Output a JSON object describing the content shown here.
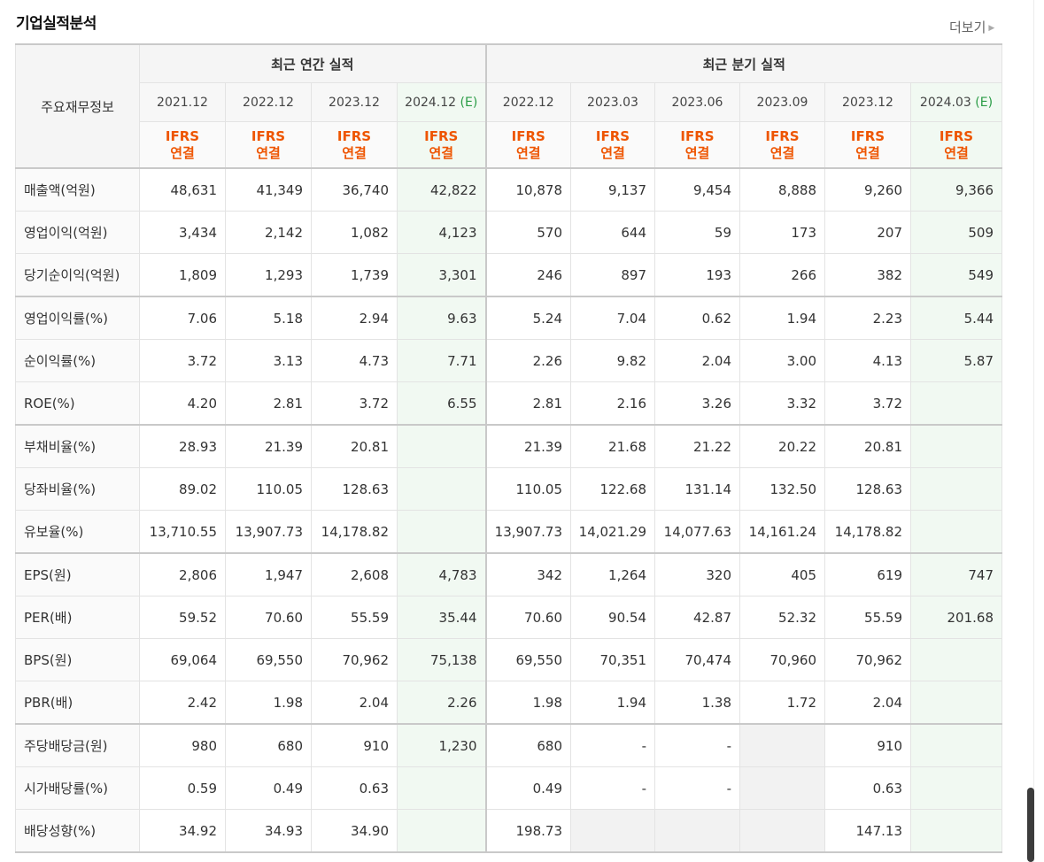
{
  "section": {
    "title": "기업실적분석",
    "more_label": "더보기",
    "more_icon": "triangle-right-icon"
  },
  "table": {
    "row_header": "주요재무정보",
    "groups": {
      "annual": "최근 연간 실적",
      "quarterly": "최근 분기 실적"
    },
    "estimate_mark": "(E)",
    "periods": [
      {
        "label": "2021.12",
        "estimate": false
      },
      {
        "label": "2022.12",
        "estimate": false
      },
      {
        "label": "2023.12",
        "estimate": false
      },
      {
        "label": "2024.12",
        "estimate": true
      },
      {
        "label": "2022.12",
        "estimate": false
      },
      {
        "label": "2023.03",
        "estimate": false
      },
      {
        "label": "2023.06",
        "estimate": false
      },
      {
        "label": "2023.09",
        "estimate": false
      },
      {
        "label": "2023.12",
        "estimate": false
      },
      {
        "label": "2024.03",
        "estimate": true
      }
    ],
    "ifrs": {
      "line1": "IFRS",
      "line2": "연결"
    },
    "rows": [
      {
        "label": "매출액(억원)",
        "values": [
          "48,631",
          "41,349",
          "36,740",
          "42,822",
          "10,878",
          "9,137",
          "9,454",
          "8,888",
          "9,260",
          "9,366"
        ]
      },
      {
        "label": "영업이익(억원)",
        "values": [
          "3,434",
          "2,142",
          "1,082",
          "4,123",
          "570",
          "644",
          "59",
          "173",
          "207",
          "509"
        ]
      },
      {
        "label": "당기순이익(억원)",
        "values": [
          "1,809",
          "1,293",
          "1,739",
          "3,301",
          "246",
          "897",
          "193",
          "266",
          "382",
          "549"
        ]
      },
      {
        "label": "영업이익률(%)",
        "values": [
          "7.06",
          "5.18",
          "2.94",
          "9.63",
          "5.24",
          "7.04",
          "0.62",
          "1.94",
          "2.23",
          "5.44"
        ]
      },
      {
        "label": "순이익률(%)",
        "values": [
          "3.72",
          "3.13",
          "4.73",
          "7.71",
          "2.26",
          "9.82",
          "2.04",
          "3.00",
          "4.13",
          "5.87"
        ]
      },
      {
        "label": "ROE(%)",
        "values": [
          "4.20",
          "2.81",
          "3.72",
          "6.55",
          "2.81",
          "2.16",
          "3.26",
          "3.32",
          "3.72",
          ""
        ]
      },
      {
        "label": "부채비율(%)",
        "values": [
          "28.93",
          "21.39",
          "20.81",
          "",
          "21.39",
          "21.68",
          "21.22",
          "20.22",
          "20.81",
          ""
        ]
      },
      {
        "label": "당좌비율(%)",
        "values": [
          "89.02",
          "110.05",
          "128.63",
          "",
          "110.05",
          "122.68",
          "131.14",
          "132.50",
          "128.63",
          ""
        ]
      },
      {
        "label": "유보율(%)",
        "values": [
          "13,710.55",
          "13,907.73",
          "14,178.82",
          "",
          "13,907.73",
          "14,021.29",
          "14,077.63",
          "14,161.24",
          "14,178.82",
          ""
        ]
      },
      {
        "label": "EPS(원)",
        "values": [
          "2,806",
          "1,947",
          "2,608",
          "4,783",
          "342",
          "1,264",
          "320",
          "405",
          "619",
          "747"
        ]
      },
      {
        "label": "PER(배)",
        "values": [
          "59.52",
          "70.60",
          "55.59",
          "35.44",
          "70.60",
          "90.54",
          "42.87",
          "52.32",
          "55.59",
          "201.68"
        ]
      },
      {
        "label": "BPS(원)",
        "values": [
          "69,064",
          "69,550",
          "70,962",
          "75,138",
          "69,550",
          "70,351",
          "70,474",
          "70,960",
          "70,962",
          ""
        ]
      },
      {
        "label": "PBR(배)",
        "values": [
          "2.42",
          "1.98",
          "2.04",
          "2.26",
          "1.98",
          "1.94",
          "1.38",
          "1.72",
          "2.04",
          ""
        ]
      },
      {
        "label": "주당배당금(원)",
        "values": [
          "980",
          "680",
          "910",
          "1,230",
          "680",
          "-",
          "-",
          "",
          "910",
          ""
        ]
      },
      {
        "label": "시가배당률(%)",
        "values": [
          "0.59",
          "0.49",
          "0.63",
          "",
          "0.49",
          "-",
          "-",
          "",
          "0.63",
          ""
        ]
      },
      {
        "label": "배당성향(%)",
        "values": [
          "34.92",
          "34.93",
          "34.90",
          "",
          "198.73",
          "",
          "",
          "",
          "147.13",
          ""
        ]
      }
    ]
  }
}
